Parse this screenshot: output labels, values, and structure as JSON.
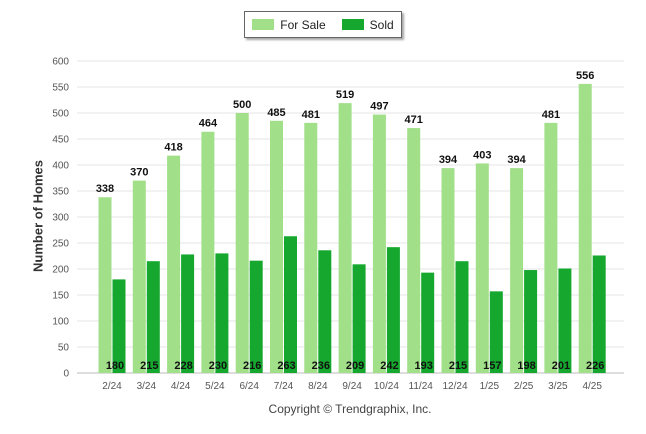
{
  "legend": {
    "for_sale": "For Sale",
    "sold": "Sold"
  },
  "copyright": "Copyright © Trendgraphix, Inc.",
  "colors": {
    "for_sale": "#a1df88",
    "sold": "#16a82e",
    "grid": "#e4e4e4"
  },
  "chart_data": {
    "type": "bar",
    "ylabel": "Number of Homes",
    "ylim": [
      0,
      600
    ],
    "yticks": [
      0,
      50,
      100,
      150,
      200,
      250,
      300,
      350,
      400,
      450,
      500,
      550,
      600
    ],
    "grid": true,
    "legend_position": "top-center",
    "categories": [
      "2/24",
      "3/24",
      "4/24",
      "5/24",
      "6/24",
      "7/24",
      "8/24",
      "9/24",
      "10/24",
      "11/24",
      "12/24",
      "1/25",
      "2/25",
      "3/25",
      "4/25"
    ],
    "series": [
      {
        "name": "For Sale",
        "values": [
          338,
          370,
          418,
          464,
          500,
          485,
          481,
          519,
          497,
          471,
          394,
          403,
          394,
          481,
          556
        ]
      },
      {
        "name": "Sold",
        "values": [
          180,
          215,
          228,
          230,
          216,
          263,
          236,
          209,
          242,
          193,
          215,
          157,
          198,
          201,
          226
        ]
      }
    ]
  }
}
